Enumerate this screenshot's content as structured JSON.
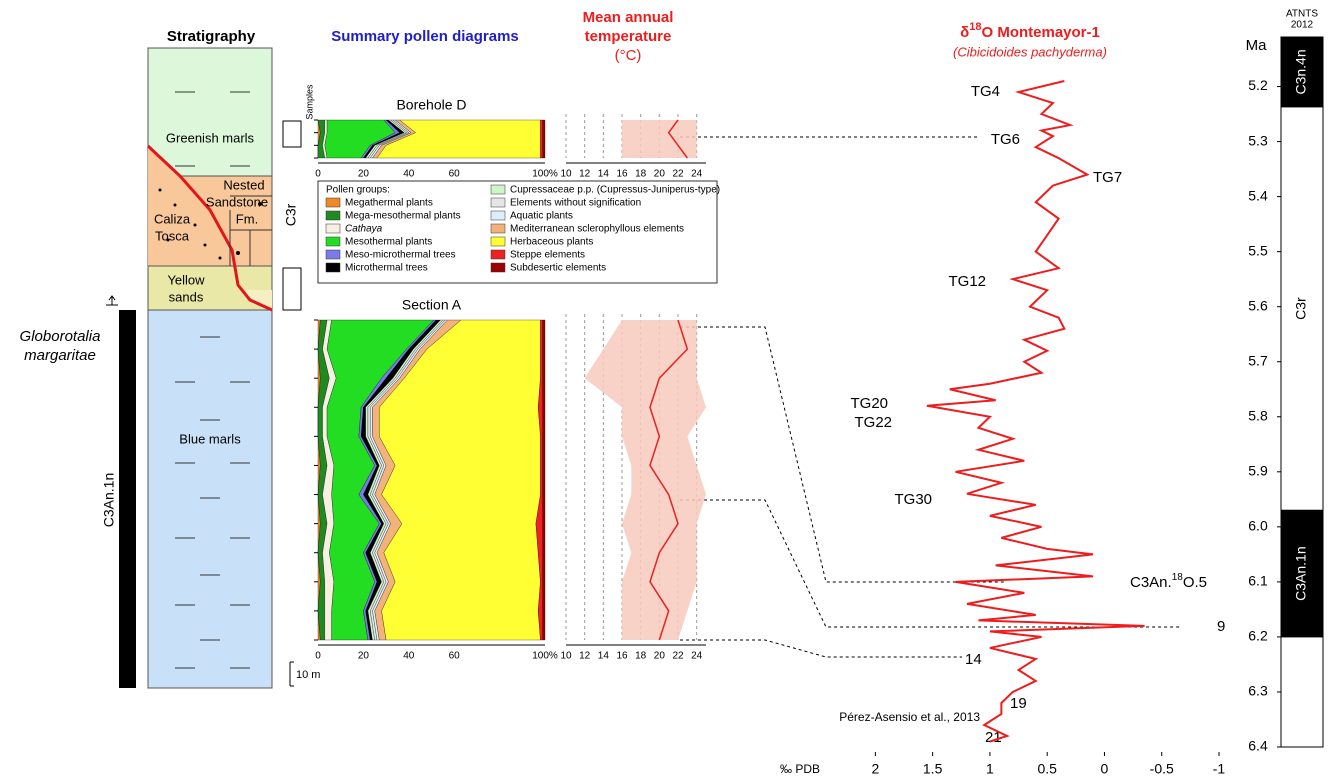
{
  "figure": {
    "strat_title": "Stratigraphy",
    "pollen_title": "Summary pollen diagrams",
    "temp_title": [
      "Mean annual",
      "temperature",
      "(°C)"
    ],
    "iso_title": [
      "δ",
      "18",
      "O Montemayor-1"
    ],
    "iso_subtitle": "(Cibicidoides pachyderma)",
    "units": [
      "Greenish marls",
      "Nested",
      "Sandstone",
      "Fm.",
      "Caliza",
      "Tosca",
      "Yellow",
      "sands",
      "Blue marls"
    ],
    "chron_left": "C3r",
    "chron_bar": "C3An.1n",
    "species": [
      "Globorotalia",
      "margaritae"
    ],
    "scale_bar": "10 m"
  },
  "chart_data": [
    {
      "type": "stacked-area",
      "title": "Section A",
      "legend_title": "Pollen groups:",
      "xlim": [
        0,
        100
      ],
      "xticks": [
        0,
        20,
        40,
        60,
        {
          "value": 100,
          "label": "100%"
        }
      ],
      "series": [
        {
          "name": "Megathermal plants",
          "color": "#f08a24",
          "values": [
            1,
            0,
            1,
            0,
            0,
            1,
            0,
            1,
            0,
            1,
            0,
            1
          ]
        },
        {
          "name": "Mega-mesothermal plants",
          "color": "#1f8a1f",
          "values": [
            3,
            2,
            4,
            2,
            2,
            3,
            2,
            3,
            2,
            2,
            3,
            2
          ]
        },
        {
          "name": "Cathaya",
          "color": "#f8efe3",
          "values": [
            2,
            2,
            3,
            2,
            2,
            3,
            4,
            3,
            3,
            4,
            3,
            3
          ]
        },
        {
          "name": "Mesothermal plants",
          "color": "#22dd22",
          "values": [
            45,
            35,
            20,
            15,
            14,
            18,
            12,
            20,
            15,
            18,
            14,
            16
          ]
        },
        {
          "name": "Meso-microthermal trees",
          "color": "#7a7aea",
          "values": [
            1,
            1,
            2,
            1,
            1,
            1,
            2,
            1,
            1,
            1,
            1,
            1
          ]
        },
        {
          "name": "Microthermal trees",
          "color": "#000000",
          "values": [
            2,
            2,
            3,
            1,
            2,
            1,
            2,
            1,
            2,
            2,
            1,
            1
          ]
        },
        {
          "name": "Cupressaceae p.p. (Cupressus-Juniperus-type)",
          "color": "#cdf5c8",
          "values": [
            1,
            1,
            1,
            1,
            1,
            1,
            1,
            1,
            1,
            1,
            1,
            1
          ]
        },
        {
          "name": "Elements without signification",
          "color": "#e6e6e6",
          "values": [
            1,
            1,
            1,
            1,
            1,
            1,
            1,
            1,
            1,
            1,
            1,
            1
          ]
        },
        {
          "name": "Aquatic plants",
          "color": "#dceefa",
          "values": [
            1,
            1,
            1,
            1,
            1,
            1,
            1,
            1,
            1,
            1,
            1,
            1
          ]
        },
        {
          "name": "Mediterranean sclerophyllous elements",
          "color": "#f2b27a",
          "values": [
            6,
            3,
            2,
            3,
            3,
            4,
            3,
            5,
            3,
            3,
            3,
            3
          ]
        },
        {
          "name": "Herbaceous plants",
          "color": "#ffff33",
          "values": [
            35,
            50,
            60,
            70,
            71,
            64,
            70,
            59,
            68,
            64,
            69,
            68
          ]
        },
        {
          "name": "Steppe elements",
          "color": "#ee2222",
          "values": [
            1,
            1,
            1,
            2,
            1,
            1,
            1,
            3,
            2,
            1,
            2,
            1
          ]
        },
        {
          "name": "Subdesertic elements",
          "color": "#9b0000",
          "values": [
            1,
            1,
            1,
            1,
            1,
            1,
            1,
            1,
            1,
            1,
            1,
            1
          ]
        }
      ]
    },
    {
      "type": "stacked-area",
      "title": "Borehole D",
      "ylabel": "Samples",
      "xlim": [
        0,
        100
      ],
      "xticks": [
        0,
        20,
        40,
        60,
        {
          "value": 100,
          "label": "100%"
        }
      ],
      "series": [
        {
          "color": "#f08a24",
          "values": [
            0,
            1,
            0,
            0
          ]
        },
        {
          "color": "#1f8a1f",
          "values": [
            3,
            2,
            2,
            3
          ]
        },
        {
          "color": "#f8efe3",
          "values": [
            1,
            1,
            1,
            1
          ]
        },
        {
          "color": "#22dd22",
          "values": [
            25,
            30,
            20,
            15
          ]
        },
        {
          "color": "#7a7aea",
          "values": [
            1,
            2,
            1,
            1
          ]
        },
        {
          "color": "#000000",
          "values": [
            1,
            2,
            1,
            1
          ]
        },
        {
          "color": "#cdf5c8",
          "values": [
            1,
            1,
            1,
            1
          ]
        },
        {
          "color": "#e6e6e6",
          "values": [
            1,
            1,
            1,
            1
          ]
        },
        {
          "color": "#dceefa",
          "values": [
            1,
            1,
            1,
            1
          ]
        },
        {
          "color": "#f2b27a",
          "values": [
            2,
            2,
            2,
            2
          ]
        },
        {
          "color": "#ffff33",
          "values": [
            62,
            55,
            68,
            72
          ]
        },
        {
          "color": "#ee2222",
          "values": [
            1,
            1,
            1,
            1
          ]
        },
        {
          "color": "#9b0000",
          "values": [
            1,
            1,
            1,
            1
          ]
        }
      ]
    },
    {
      "type": "band-line",
      "xlim": [
        10,
        25
      ],
      "xticks": [
        10,
        12,
        14,
        16,
        18,
        20,
        22,
        24
      ],
      "series": [
        {
          "color": "#e8231f",
          "band_color": "#f7c9bd",
          "values": [
            22,
            23,
            20,
            19,
            20,
            19,
            21,
            22,
            20,
            19,
            21,
            20
          ],
          "lower": [
            16,
            14,
            12,
            16,
            16,
            17,
            17,
            16,
            17,
            16,
            16,
            16
          ],
          "upper": [
            24,
            24,
            24,
            25,
            23,
            24,
            25,
            24,
            24,
            24,
            23,
            22
          ]
        }
      ]
    },
    {
      "type": "band-line",
      "xlim": [
        10,
        25
      ],
      "xticks": [
        10,
        12,
        14,
        16,
        18,
        20,
        22,
        24
      ],
      "series": [
        {
          "color": "#e8231f",
          "band_color": "#f7c9bd",
          "values": [
            22,
            21,
            22,
            23
          ],
          "lower": [
            16,
            16,
            16,
            16
          ],
          "upper": [
            24,
            24,
            24,
            24
          ]
        }
      ]
    },
    {
      "type": "line",
      "xlabel": "‰ PDB",
      "ylabel": "Ma",
      "chron_title": [
        "ATNTS",
        "2012"
      ],
      "color": "#ee1c1c",
      "xlim": [
        2.3,
        -1
      ],
      "xticks": [
        2,
        1.5,
        1,
        0.5,
        0,
        -0.5,
        -1
      ],
      "ylim": [
        5.11,
        6.4
      ],
      "yticks": [
        5.2,
        5.3,
        5.4,
        5.5,
        5.6,
        5.7,
        5.8,
        5.9,
        {
          "value": 6,
          "label": "6.0"
        },
        6.1,
        6.2,
        6.3,
        6.4
      ],
      "x": [
        5.19,
        5.21,
        5.23,
        5.25,
        5.27,
        5.28,
        5.29,
        5.31,
        5.33,
        5.36,
        5.38,
        5.41,
        5.44,
        5.47,
        5.5,
        5.53,
        5.55,
        5.57,
        5.6,
        5.62,
        5.64,
        5.66,
        5.68,
        5.7,
        5.72,
        5.74,
        5.75,
        5.77,
        5.78,
        5.8,
        5.82,
        5.84,
        5.86,
        5.88,
        5.9,
        5.92,
        5.94,
        5.96,
        5.98,
        6.0,
        6.02,
        6.04,
        6.05,
        6.07,
        6.09,
        6.1,
        6.12,
        6.14,
        6.16,
        6.17,
        6.18,
        6.19,
        6.2,
        6.22,
        6.24,
        6.26,
        6.28,
        6.3,
        6.32,
        6.34,
        6.36,
        6.38,
        6.39
      ],
      "values": [
        0.35,
        0.75,
        0.45,
        0.55,
        0.3,
        0.55,
        0.45,
        0.6,
        0.4,
        0.15,
        0.45,
        0.6,
        0.4,
        0.5,
        0.6,
        0.4,
        0.8,
        0.5,
        0.65,
        0.4,
        0.35,
        0.7,
        0.5,
        0.7,
        0.55,
        1.0,
        1.35,
        0.95,
        1.55,
        1.0,
        1.1,
        0.8,
        1.1,
        0.7,
        1.3,
        0.9,
        1.2,
        0.6,
        1.0,
        0.55,
        0.9,
        0.5,
        0.1,
        0.95,
        0.1,
        1.3,
        0.7,
        1.2,
        0.6,
        1.1,
        -0.35,
        1.0,
        0.55,
        1.0,
        0.6,
        0.75,
        0.6,
        0.8,
        0.9,
        0.9,
        1.05,
        0.85,
        1.0
      ],
      "chrons": [
        {
          "name": "C3n.4n",
          "top": 5.11,
          "base": 5.237,
          "color": "#000000"
        },
        {
          "name": "C3r",
          "top": 5.237,
          "base": 5.97,
          "color": "#ffffff"
        },
        {
          "name": "C3An.1n",
          "top": 5.97,
          "base": 6.2,
          "color": "#000000"
        },
        {
          "top": 6.2,
          "base": 6.4,
          "color": "#ffffff"
        }
      ],
      "annotations": [
        "TG4",
        "TG6",
        "TG7",
        "TG12",
        "TG20",
        "TG22",
        "TG30",
        [
          "C3An.",
          "18",
          "O.5"
        ],
        "9",
        "14",
        "19",
        "21",
        "Pérez-Asensio et al., 2013"
      ]
    }
  ]
}
